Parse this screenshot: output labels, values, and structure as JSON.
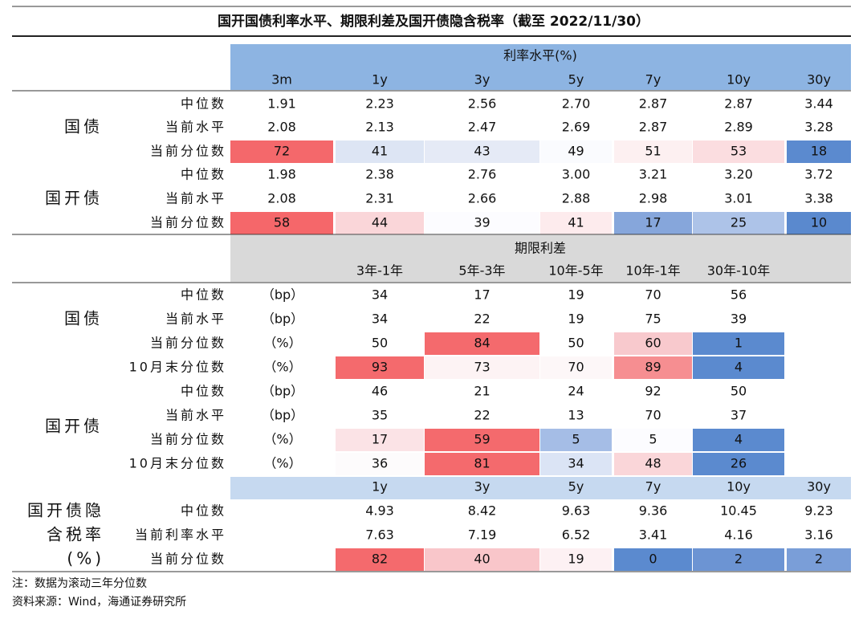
{
  "title": "国开国债利率水平、期限利差及国开债隐含税率（截至 2022/11/30）",
  "rate_section": {
    "header": "利率水平(%)",
    "tenors": [
      "3m",
      "1y",
      "3y",
      "5y",
      "7y",
      "10y",
      "30y"
    ],
    "groups": [
      {
        "name": "国债",
        "rows": [
          {
            "label": "中位数",
            "values": [
              "1.91",
              "2.23",
              "2.56",
              "2.70",
              "2.87",
              "2.87",
              "3.44"
            ]
          },
          {
            "label": "当前水平",
            "values": [
              "2.08",
              "2.13",
              "2.47",
              "2.69",
              "2.87",
              "2.89",
              "3.28"
            ]
          },
          {
            "label": "当前分位数",
            "values": [
              "72",
              "41",
              "43",
              "49",
              "51",
              "53",
              "18"
            ],
            "colors": [
              "#f4686b",
              "#dde5f4",
              "#e5eaf6",
              "#fafbfe",
              "#fdf0f1",
              "#fbdde0",
              "#5b8acf"
            ]
          }
        ]
      },
      {
        "name": "国开债",
        "rows": [
          {
            "label": "中位数",
            "values": [
              "1.98",
              "2.38",
              "2.76",
              "3.00",
              "3.21",
              "3.20",
              "3.72"
            ]
          },
          {
            "label": "当前水平",
            "values": [
              "2.08",
              "2.31",
              "2.66",
              "2.88",
              "2.98",
              "3.01",
              "3.38"
            ]
          },
          {
            "label": "当前分位数",
            "values": [
              "58",
              "44",
              "39",
              "41",
              "17",
              "25",
              "10"
            ],
            "colors": [
              "#f5676a",
              "#fad6d9",
              "#fcfcff",
              "#fdebed",
              "#86a6db",
              "#adc3e8",
              "#5a89ce"
            ]
          }
        ]
      }
    ]
  },
  "spread_section": {
    "header": "期限利差",
    "columns": [
      "3年-1年",
      "5年-3年",
      "10年-5年",
      "10年-1年",
      "30年-10年"
    ],
    "groups": [
      {
        "name": "国债",
        "rows": [
          {
            "label": "中位数",
            "unit": "（bp）",
            "values": [
              "34",
              "17",
              "19",
              "70",
              "56"
            ]
          },
          {
            "label": "当前水平",
            "unit": "（bp）",
            "values": [
              "34",
              "22",
              "19",
              "75",
              "39"
            ]
          },
          {
            "label": "当前分位数",
            "unit": "（%）",
            "values": [
              "50",
              "84",
              "50",
              "60",
              "1"
            ],
            "colors": [
              "#ffffff",
              "#f46a6d",
              "#ffffff",
              "#f8c9cd",
              "#5b8acf"
            ]
          },
          {
            "label": "10月末分位数",
            "unit": "（%）",
            "values": [
              "93",
              "73",
              "70",
              "89",
              "4"
            ],
            "colors": [
              "#f46a6d",
              "#fdf3f4",
              "#fdf7f8",
              "#f68e91",
              "#5b8acf"
            ]
          }
        ]
      },
      {
        "name": "国开债",
        "rows": [
          {
            "label": "中位数",
            "unit": "（bp）",
            "values": [
              "46",
              "21",
              "24",
              "92",
              "50"
            ]
          },
          {
            "label": "当前水平",
            "unit": "（bp）",
            "values": [
              "35",
              "22",
              "13",
              "70",
              "37"
            ]
          },
          {
            "label": "当前分位数",
            "unit": "（%）",
            "values": [
              "17",
              "59",
              "5",
              "5",
              "4"
            ],
            "colors": [
              "#fbe3e6",
              "#f46a6d",
              "#a5bde6",
              "#fcfcff",
              "#5b8acf"
            ]
          },
          {
            "label": "10月末分位数",
            "unit": "（%）",
            "values": [
              "36",
              "81",
              "34",
              "48",
              "26"
            ],
            "colors": [
              "#fdfbfc",
              "#f46a6d",
              "#dbe4f5",
              "#fad6d9",
              "#5b8acf"
            ]
          }
        ]
      }
    ]
  },
  "tax_section": {
    "name": [
      "国开债隐",
      "含税率",
      "(%)"
    ],
    "tenors": [
      "1y",
      "3y",
      "5y",
      "7y",
      "10y",
      "30y"
    ],
    "rows": [
      {
        "label": "中位数",
        "values": [
          "4.93",
          "8.42",
          "9.63",
          "9.36",
          "10.45",
          "9.23"
        ]
      },
      {
        "label": "当前利率水平",
        "values": [
          "7.63",
          "7.19",
          "6.52",
          "3.41",
          "4.16",
          "3.16"
        ]
      },
      {
        "label": "当前分位数",
        "values": [
          "82",
          "40",
          "19",
          "0",
          "2",
          "2"
        ],
        "colors": [
          "#f46a6d",
          "#f9c6ca",
          "#fdf1f3",
          "#5b8acf",
          "#6c94d3",
          "#7a9ed8"
        ]
      }
    ]
  },
  "notes": [
    "注：数据为滚动三年分位数",
    "资料来源：Wind，海通证券研究所"
  ]
}
